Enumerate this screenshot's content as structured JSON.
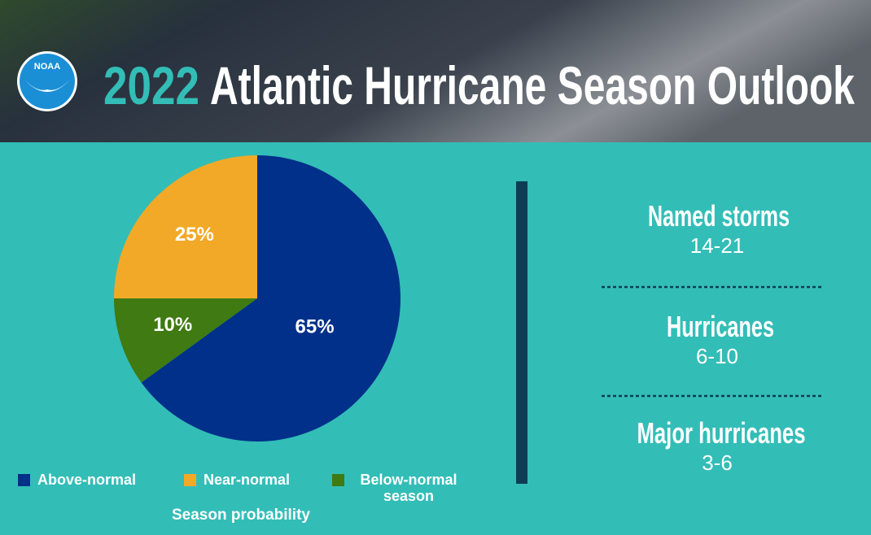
{
  "header": {
    "logo": "NOAA",
    "title_year": "2022",
    "title": "Atlantic Hurricane Season Outlook"
  },
  "chart_data": {
    "type": "pie",
    "x_label": "Season probability",
    "categories": [
      "Above-normal",
      "Below-normal season",
      "Near-normal"
    ],
    "values": [
      65,
      10,
      25
    ],
    "value_labels": [
      "65%",
      "10%",
      "25%"
    ],
    "colors": [
      "#00308a",
      "#3f7a12",
      "#f2a927"
    ]
  },
  "stats": [
    {
      "label": "Named storms",
      "value": "14-21"
    },
    {
      "label": "Hurricanes",
      "value": "6-10"
    },
    {
      "label": "Major hurricanes",
      "value": "3-6"
    }
  ]
}
